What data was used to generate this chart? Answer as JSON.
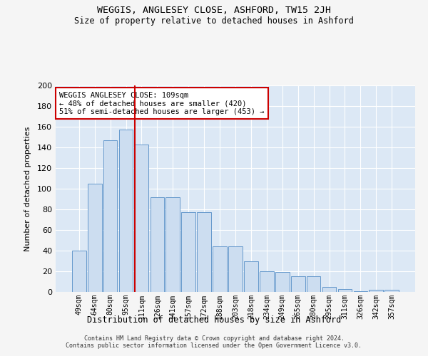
{
  "title": "WEGGIS, ANGLESEY CLOSE, ASHFORD, TW15 2JH",
  "subtitle": "Size of property relative to detached houses in Ashford",
  "xlabel": "Distribution of detached houses by size in Ashford",
  "ylabel": "Number of detached properties",
  "categories": [
    "49sqm",
    "64sqm",
    "80sqm",
    "95sqm",
    "111sqm",
    "126sqm",
    "141sqm",
    "157sqm",
    "172sqm",
    "188sqm",
    "203sqm",
    "218sqm",
    "234sqm",
    "249sqm",
    "265sqm",
    "280sqm",
    "295sqm",
    "311sqm",
    "326sqm",
    "342sqm",
    "357sqm"
  ],
  "values": [
    40,
    105,
    147,
    157,
    143,
    92,
    92,
    77,
    77,
    44,
    44,
    30,
    20,
    19,
    15,
    15,
    5,
    3,
    1,
    2,
    2
  ],
  "bar_color": "#ccddf0",
  "bar_edge_color": "#6699cc",
  "vline_x_idx": 4,
  "vline_color": "#cc0000",
  "annotation_text": "WEGGIS ANGLESEY CLOSE: 109sqm\n← 48% of detached houses are smaller (420)\n51% of semi-detached houses are larger (453) →",
  "annotation_box_color": "#ffffff",
  "annotation_box_edge": "#cc0000",
  "ylim": [
    0,
    200
  ],
  "yticks": [
    0,
    20,
    40,
    60,
    80,
    100,
    120,
    140,
    160,
    180,
    200
  ],
  "plot_bg_color": "#dce8f5",
  "grid_color": "#ffffff",
  "fig_bg_color": "#f5f5f5",
  "footer_line1": "Contains HM Land Registry data © Crown copyright and database right 2024.",
  "footer_line2": "Contains public sector information licensed under the Open Government Licence v3.0."
}
